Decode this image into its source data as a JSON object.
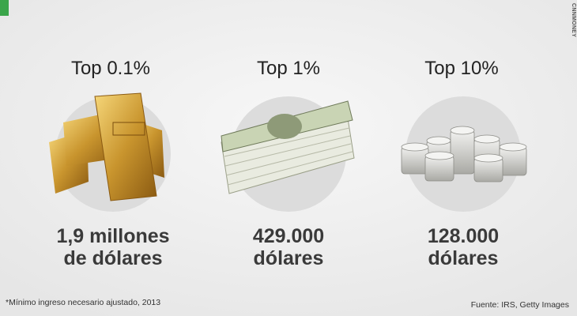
{
  "brand": "CNNMONEY",
  "items": [
    {
      "title": "Top 0.1%",
      "lines": [
        "1,9 millones",
        "de dólares"
      ]
    },
    {
      "title": "Top 1%",
      "lines": [
        "429.000",
        "dólares"
      ]
    },
    {
      "title": "Top 10%",
      "lines": [
        "128.000",
        "dólares"
      ]
    }
  ],
  "footnote": "*Mínimo ingreso necesario ajustado, 2013",
  "source": "Fuente: IRS, Getty Images"
}
